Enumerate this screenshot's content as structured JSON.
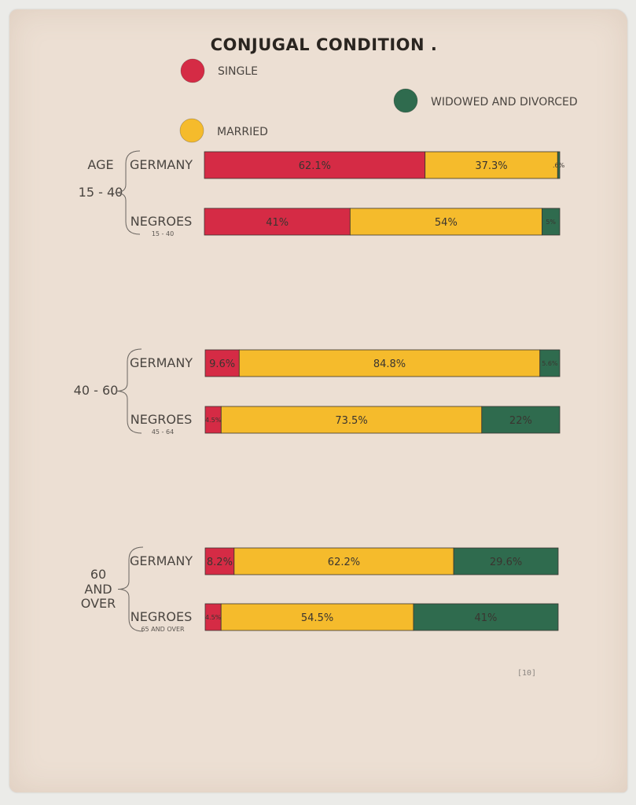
{
  "colors": {
    "single": "#d52b45",
    "married": "#f5bb2c",
    "widowed": "#2f6b4e"
  },
  "chart_data": {
    "type": "bar",
    "title": "CONJUGAL CONDITION .",
    "legend": [
      {
        "key": "single",
        "label": "SINGLE"
      },
      {
        "key": "married",
        "label": "MARRIED"
      },
      {
        "key": "widowed",
        "label": "WIDOWED AND DIVORCED"
      }
    ],
    "groups": [
      {
        "label_lines": [
          "AGE",
          "15 - 40"
        ],
        "rows": [
          {
            "label": "GERMANY",
            "sub": "",
            "values": [
              62.1,
              37.3,
              0.6
            ],
            "value_labels": [
              "62.1%",
              "37.3%",
              ".6%"
            ]
          },
          {
            "label": "NEGROES",
            "sub": "15 - 40",
            "values": [
              41,
              54,
              5
            ],
            "value_labels": [
              "41%",
              "54%",
              "5%"
            ]
          }
        ]
      },
      {
        "label_lines": [
          "40 - 60"
        ],
        "rows": [
          {
            "label": "GERMANY",
            "sub": "",
            "values": [
              9.6,
              84.8,
              5.6
            ],
            "value_labels": [
              "9.6%",
              "84.8%",
              "5.6%"
            ]
          },
          {
            "label": "NEGROES",
            "sub": "45 - 64",
            "values": [
              4.5,
              73.5,
              22
            ],
            "value_labels": [
              "4.5%",
              "73.5%",
              "22%"
            ]
          }
        ]
      },
      {
        "label_lines": [
          "60",
          "AND",
          "OVER"
        ],
        "rows": [
          {
            "label": "GERMANY",
            "sub": "",
            "values": [
              8.2,
              62.2,
              29.6
            ],
            "value_labels": [
              "8.2%",
              "62.2%",
              "29.6%"
            ]
          },
          {
            "label": "NEGROES",
            "sub": "65 AND OVER",
            "values": [
              4.5,
              54.5,
              41
            ],
            "value_labels": [
              "4.5%",
              "54.5%",
              "41%"
            ]
          }
        ]
      }
    ],
    "plate_number": "[10]"
  }
}
